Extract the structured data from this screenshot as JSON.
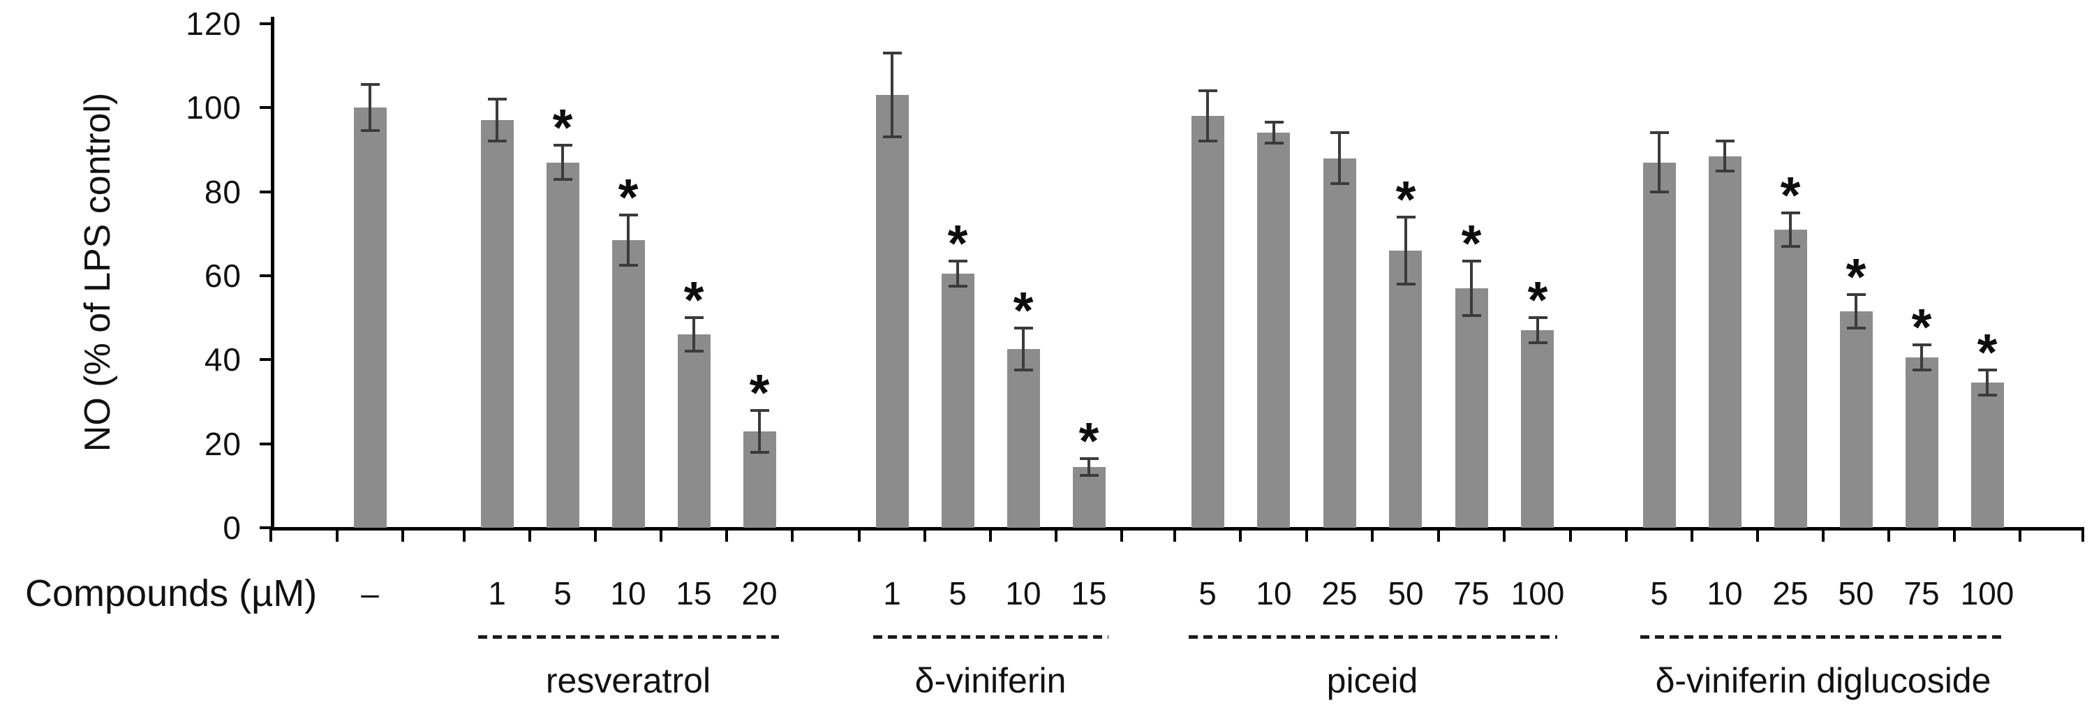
{
  "figure": {
    "background": "#ffffff",
    "text_color": "#1a1a1a"
  },
  "chart_data": {
    "type": "bar",
    "title": "",
    "ylabel": "NO (% of LPS control)",
    "xlabel": "Compounds (µM)",
    "ylim": [
      0,
      120
    ],
    "ytick_step": 20,
    "yticks": [
      0,
      20,
      40,
      60,
      80,
      100,
      120
    ],
    "grid": false,
    "legend_position": "none",
    "bar_color": "#8c8c8c",
    "error_bar_color": "#3b3b3b",
    "axis_color": "#000000",
    "sig_marker": "*",
    "control": {
      "label": "–",
      "value": 100,
      "error": 5.5,
      "significant": false
    },
    "groups": [
      {
        "name": "resveratrol",
        "concentrations": [
          "1",
          "5",
          "10",
          "15",
          "20"
        ],
        "values": [
          97,
          87,
          68.5,
          46,
          23
        ],
        "errors": [
          5,
          4,
          6,
          4,
          5
        ],
        "significant": [
          false,
          true,
          true,
          true,
          true
        ]
      },
      {
        "name": "δ-viniferin",
        "concentrations": [
          "1",
          "5",
          "10",
          "15"
        ],
        "values": [
          103,
          60.5,
          42.5,
          14.5
        ],
        "errors": [
          10,
          3,
          5,
          2
        ],
        "significant": [
          false,
          true,
          true,
          true
        ]
      },
      {
        "name": "piceid",
        "concentrations": [
          "5",
          "10",
          "25",
          "50",
          "75",
          "100"
        ],
        "values": [
          98,
          94,
          88,
          66,
          57,
          47
        ],
        "errors": [
          6,
          2.5,
          6,
          8,
          6.5,
          3
        ],
        "significant": [
          false,
          false,
          false,
          true,
          true,
          true
        ]
      },
      {
        "name": "δ-viniferin diglucoside",
        "concentrations": [
          "5",
          "10",
          "25",
          "50",
          "75",
          "100"
        ],
        "values": [
          87,
          88.5,
          71,
          51.5,
          40.5,
          34.5
        ],
        "errors": [
          7,
          3.5,
          4,
          4,
          3,
          3
        ],
        "significant": [
          false,
          false,
          true,
          true,
          true,
          true
        ]
      }
    ]
  }
}
